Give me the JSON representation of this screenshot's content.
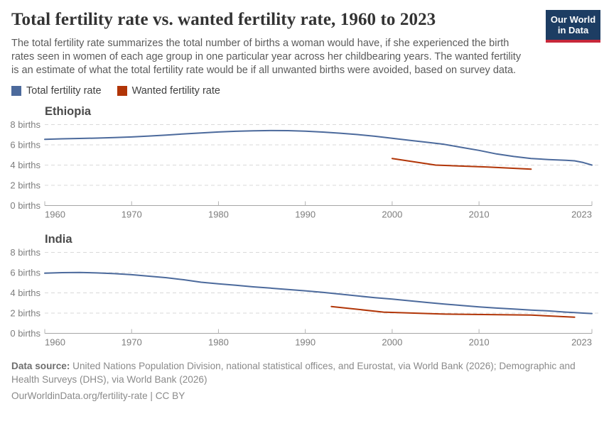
{
  "header": {
    "title": "Total fertility rate vs. wanted fertility rate, 1960 to 2023",
    "subtitle": "The total fertility rate summarizes the total number of births a woman would have, if she experienced the birth rates seen in women of each age group in one particular year across her childbearing years. The wanted fertility is an estimate of what the total fertility rate would be if all unwanted births were avoided, based on survey data.",
    "logo": {
      "line1": "Our World",
      "line2": "in Data",
      "bg_color": "#1d3d63",
      "accent_color": "#c7273a"
    }
  },
  "legend": [
    {
      "label": "Total fertility rate",
      "color": "#4C6A9C"
    },
    {
      "label": "Wanted fertility rate",
      "color": "#B13507"
    }
  ],
  "chart_data": [
    {
      "type": "line",
      "title": "Ethiopia",
      "xlim": [
        1960,
        2023
      ],
      "ylim": [
        0,
        8
      ],
      "x_ticks": [
        1960,
        1970,
        1980,
        1990,
        2000,
        2010,
        2023
      ],
      "x_tick_labels": [
        "1960",
        "1970",
        "1980",
        "1990",
        "2000",
        "2010",
        "2023"
      ],
      "y_ticks": [
        0,
        2,
        4,
        6,
        8
      ],
      "y_tick_labels": [
        "0 births",
        "2 births",
        "4 births",
        "6 births",
        "8 births"
      ],
      "grid": true,
      "series": [
        {
          "name": "Total fertility rate",
          "color": "#4C6A9C",
          "points": [
            [
              1960,
              6.55
            ],
            [
              1962,
              6.6
            ],
            [
              1964,
              6.63
            ],
            [
              1966,
              6.67
            ],
            [
              1968,
              6.72
            ],
            [
              1970,
              6.78
            ],
            [
              1972,
              6.87
            ],
            [
              1974,
              6.97
            ],
            [
              1976,
              7.08
            ],
            [
              1978,
              7.18
            ],
            [
              1980,
              7.27
            ],
            [
              1982,
              7.34
            ],
            [
              1984,
              7.39
            ],
            [
              1986,
              7.41
            ],
            [
              1988,
              7.4
            ],
            [
              1990,
              7.35
            ],
            [
              1992,
              7.26
            ],
            [
              1994,
              7.15
            ],
            [
              1996,
              7.02
            ],
            [
              1998,
              6.85
            ],
            [
              2000,
              6.65
            ],
            [
              2002,
              6.45
            ],
            [
              2004,
              6.25
            ],
            [
              2006,
              6.05
            ],
            [
              2008,
              5.75
            ],
            [
              2010,
              5.45
            ],
            [
              2012,
              5.1
            ],
            [
              2014,
              4.85
            ],
            [
              2016,
              4.65
            ],
            [
              2018,
              4.55
            ],
            [
              2020,
              4.48
            ],
            [
              2021,
              4.42
            ],
            [
              2022,
              4.25
            ],
            [
              2023,
              4.0
            ]
          ]
        },
        {
          "name": "Wanted fertility rate",
          "color": "#B13507",
          "points": [
            [
              2000,
              4.65
            ],
            [
              2005,
              4.0
            ],
            [
              2011,
              3.8
            ],
            [
              2016,
              3.6
            ]
          ]
        }
      ]
    },
    {
      "type": "line",
      "title": "India",
      "xlim": [
        1960,
        2023
      ],
      "ylim": [
        0,
        8
      ],
      "x_ticks": [
        1960,
        1970,
        1980,
        1990,
        2000,
        2010,
        2023
      ],
      "x_tick_labels": [
        "1960",
        "1970",
        "1980",
        "1990",
        "2000",
        "2010",
        "2023"
      ],
      "y_ticks": [
        0,
        2,
        4,
        6,
        8
      ],
      "y_tick_labels": [
        "0 births",
        "2 births",
        "4 births",
        "6 births",
        "8 births"
      ],
      "grid": true,
      "series": [
        {
          "name": "Total fertility rate",
          "color": "#4C6A9C",
          "points": [
            [
              1960,
              5.95
            ],
            [
              1962,
              6.0
            ],
            [
              1964,
              6.02
            ],
            [
              1966,
              5.97
            ],
            [
              1968,
              5.9
            ],
            [
              1970,
              5.8
            ],
            [
              1972,
              5.65
            ],
            [
              1974,
              5.5
            ],
            [
              1976,
              5.3
            ],
            [
              1978,
              5.05
            ],
            [
              1980,
              4.9
            ],
            [
              1982,
              4.75
            ],
            [
              1984,
              4.6
            ],
            [
              1986,
              4.47
            ],
            [
              1988,
              4.33
            ],
            [
              1990,
              4.2
            ],
            [
              1992,
              4.05
            ],
            [
              1994,
              3.88
            ],
            [
              1996,
              3.7
            ],
            [
              1998,
              3.52
            ],
            [
              2000,
              3.38
            ],
            [
              2002,
              3.22
            ],
            [
              2004,
              3.05
            ],
            [
              2006,
              2.9
            ],
            [
              2008,
              2.75
            ],
            [
              2010,
              2.62
            ],
            [
              2012,
              2.5
            ],
            [
              2014,
              2.4
            ],
            [
              2016,
              2.3
            ],
            [
              2018,
              2.22
            ],
            [
              2020,
              2.1
            ],
            [
              2021,
              2.05
            ],
            [
              2022,
              2.0
            ],
            [
              2023,
              1.96
            ]
          ]
        },
        {
          "name": "Wanted fertility rate",
          "color": "#B13507",
          "points": [
            [
              1993,
              2.65
            ],
            [
              1999,
              2.1
            ],
            [
              2006,
              1.9
            ],
            [
              2016,
              1.8
            ],
            [
              2021,
              1.6
            ]
          ]
        }
      ]
    }
  ],
  "footer": {
    "source_label": "Data source:",
    "source_text": "United Nations Population Division, national statistical offices, and Eurostat, via World Bank (2026); Demographic and Health Surveys (DHS), via World Bank (2026)",
    "note": "OurWorldinData.org/fertility-rate | CC BY"
  }
}
